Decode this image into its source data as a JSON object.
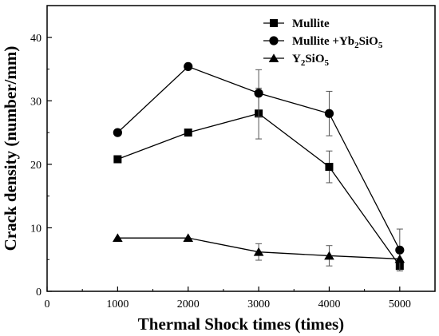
{
  "chart_data": {
    "type": "line",
    "title": "",
    "xlabel": "Thermal Shock times (times)",
    "ylabel": "Crack density (number/mm)",
    "xlim": [
      0,
      5500
    ],
    "ylim": [
      0,
      45
    ],
    "x_ticks": [
      0,
      1000,
      2000,
      3000,
      4000,
      5000
    ],
    "y_ticks": [
      0,
      10,
      20,
      30,
      40
    ],
    "x_tick_labels": [
      "0",
      "1000",
      "2000",
      "3000",
      "4000",
      "5000"
    ],
    "y_tick_labels": [
      "0",
      "10",
      "20",
      "30",
      "40"
    ],
    "grid": false,
    "legend_position": "top-right",
    "x": [
      1000,
      2000,
      3000,
      4000,
      5000
    ],
    "series": [
      {
        "name": "Mullite",
        "legend": {
          "base": "Mullite",
          "parts": []
        },
        "marker": "square",
        "values": [
          20.8,
          25.0,
          28.0,
          19.6,
          4.0
        ],
        "errors": [
          null,
          null,
          4.0,
          2.5,
          null
        ]
      },
      {
        "name": "Mullite +Yb2SiO5",
        "legend": {
          "base": "Mullite +Yb",
          "parts": [
            [
              "2",
              "sub"
            ],
            [
              "SiO",
              "base"
            ],
            [
              "5",
              "sub"
            ]
          ]
        },
        "marker": "circle",
        "values": [
          25.0,
          35.4,
          31.2,
          28.0,
          6.5
        ],
        "errors": [
          null,
          null,
          3.7,
          3.5,
          3.3
        ]
      },
      {
        "name": "Y2SiO5",
        "legend": {
          "base": "Y",
          "parts": [
            [
              "2",
              "sub"
            ],
            [
              "SiO",
              "base"
            ],
            [
              "5",
              "sub"
            ]
          ]
        },
        "marker": "triangle",
        "values": [
          8.4,
          8.4,
          6.2,
          5.6,
          5.1
        ],
        "errors": [
          null,
          null,
          1.3,
          1.6,
          null
        ]
      }
    ],
    "colors": {
      "line": "#000000",
      "background": "#ffffff"
    }
  }
}
